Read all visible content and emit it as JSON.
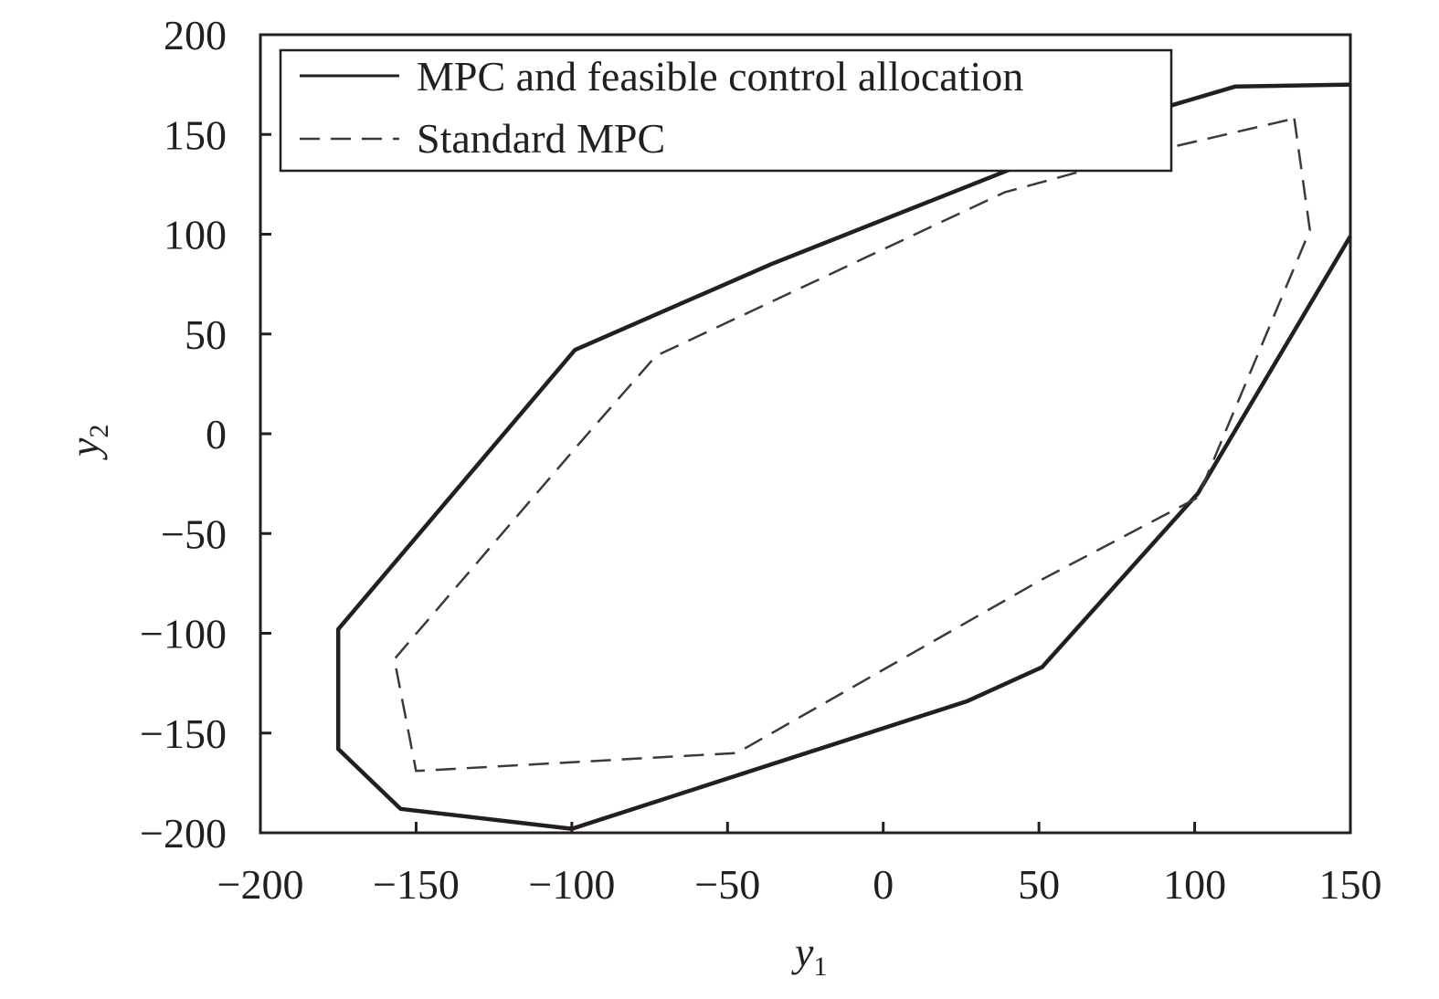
{
  "chart_data": {
    "type": "line",
    "title": "",
    "xlabel": "y",
    "xlabel_sub": "1",
    "ylabel": "y",
    "ylabel_sub": "2",
    "xlim": [
      -200,
      150
    ],
    "ylim": [
      -200,
      200
    ],
    "xticks": [
      -200,
      -150,
      -100,
      -50,
      0,
      50,
      100,
      150
    ],
    "yticks": [
      -200,
      -150,
      -100,
      -50,
      0,
      50,
      100,
      150,
      200
    ],
    "xtick_labels": [
      "−200",
      "−150",
      "−100",
      "−50",
      "0",
      "50",
      "100",
      "150"
    ],
    "ytick_labels": [
      "−200",
      "−150",
      "−100",
      "−50",
      "0",
      "50",
      "100",
      "150",
      "200"
    ],
    "grid": false,
    "legend_position": "top-left",
    "series": [
      {
        "name": "MPC and feasible control allocation",
        "style": "solid",
        "color": "#231f20",
        "points": [
          [
            150,
            175
          ],
          [
            113,
            174
          ],
          [
            100,
            168
          ],
          [
            87,
            162
          ],
          [
            40,
            132
          ],
          [
            -36,
            85
          ],
          [
            -99,
            42
          ],
          [
            -175,
            -98
          ],
          [
            -175,
            -158
          ],
          [
            -155,
            -188
          ],
          [
            -100,
            -198
          ],
          [
            27,
            -134
          ],
          [
            51,
            -117
          ],
          [
            101,
            -30
          ],
          [
            150,
            99
          ]
        ]
      },
      {
        "name": "Standard MPC",
        "style": "dashed",
        "color": "#3a3a3a",
        "points": [
          [
            132,
            158
          ],
          [
            137,
            102
          ],
          [
            101,
            -32
          ],
          [
            51,
            -73
          ],
          [
            -47,
            -160
          ],
          [
            -150,
            -169
          ],
          [
            -157,
            -113
          ],
          [
            -96,
            -2
          ],
          [
            -73,
            39
          ],
          [
            39,
            121
          ],
          [
            88,
            142
          ],
          [
            132,
            158
          ]
        ]
      }
    ]
  }
}
